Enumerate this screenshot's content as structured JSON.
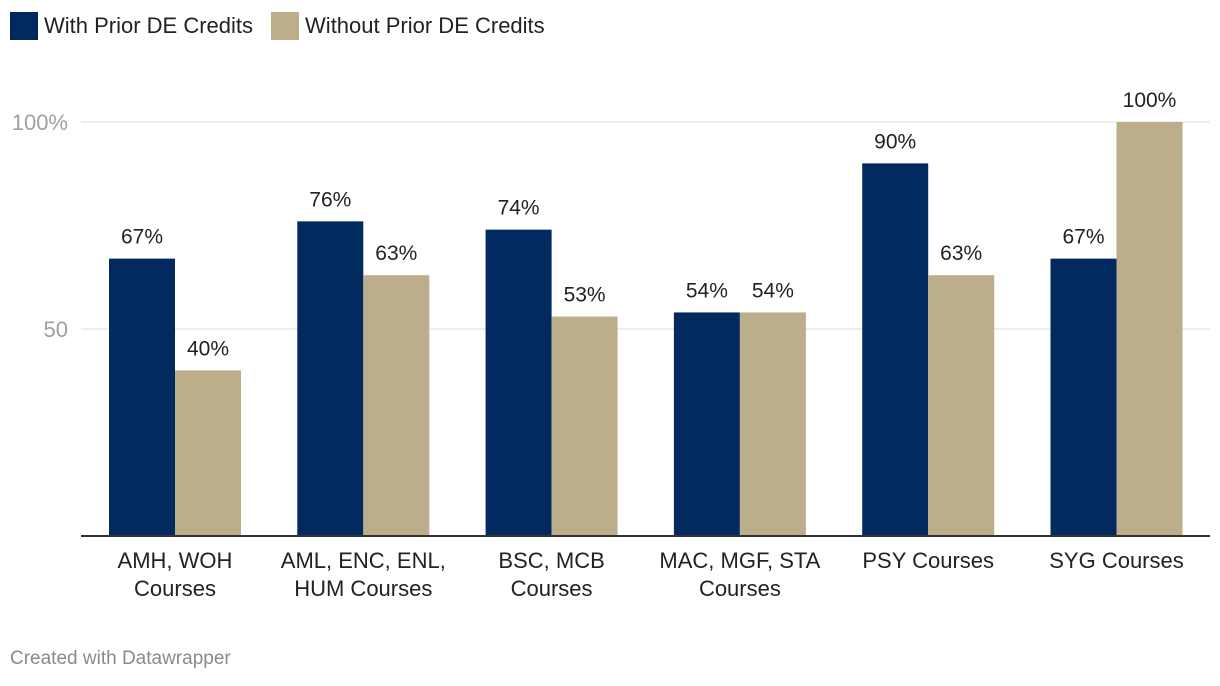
{
  "chart_data": {
    "type": "bar",
    "title": "",
    "xlabel": "",
    "ylabel": "",
    "categories": [
      [
        "AMH, WOH",
        "Courses"
      ],
      [
        "AML, ENC, ENL,",
        "HUM Courses"
      ],
      [
        "BSC, MCB",
        "Courses"
      ],
      [
        "MAC, MGF, STA",
        "Courses"
      ],
      [
        "PSY Courses"
      ],
      [
        "SYG Courses"
      ]
    ],
    "series": [
      {
        "name": "With Prior DE Credits",
        "color": "#022a5f",
        "values": [
          67,
          76,
          74,
          54,
          90,
          67
        ],
        "labels": [
          "67%",
          "76%",
          "74%",
          "54%",
          "90%",
          "67%"
        ]
      },
      {
        "name": "Without Prior DE Credits",
        "color": "#bdae8b",
        "values": [
          40,
          63,
          53,
          54,
          63,
          100
        ],
        "labels": [
          "40%",
          "63%",
          "53%",
          "54%",
          "63%",
          "100%"
        ]
      }
    ],
    "ylim": [
      0,
      100
    ],
    "yticks": [
      {
        "value": 50,
        "label": "50"
      },
      {
        "value": 100,
        "label": "100%"
      }
    ],
    "legend_position": "top-left",
    "grid": true
  },
  "footer": {
    "credit": "Created with Datawrapper"
  }
}
